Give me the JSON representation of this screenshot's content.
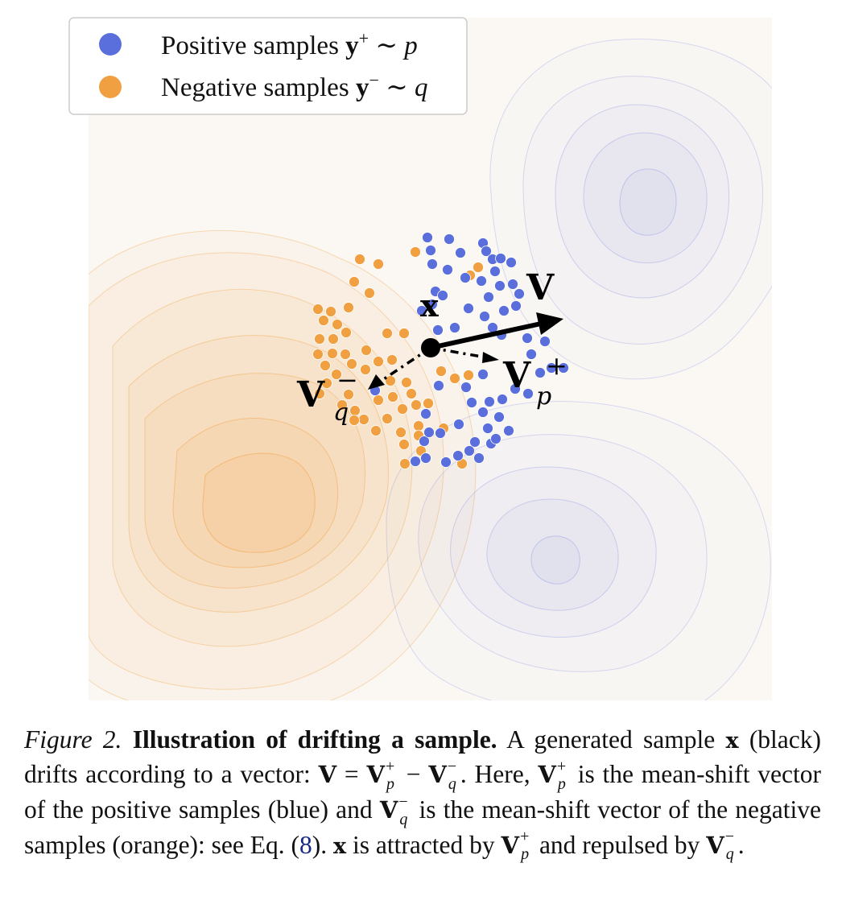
{
  "figure": {
    "legend": [
      {
        "label": "Positive samples ",
        "bold": "y",
        "sup": "+",
        "rest": " ∼ p",
        "color": "#5a6fdc"
      },
      {
        "label": "Negative samples ",
        "bold": "y",
        "sup": "−",
        "rest": " ∼ q",
        "color": "#f0a040"
      }
    ],
    "labels": {
      "x": "x",
      "v": "V",
      "vp": "V",
      "vp_sup": "+",
      "vp_sub": "p",
      "vq": "V",
      "vq_sup": "−",
      "vq_sub": "q"
    },
    "colors": {
      "positive": "#5a6fdc",
      "negative": "#f0a040",
      "background": "#fbf8f4",
      "sample": "#000000"
    }
  },
  "caption": {
    "fig_label": "Figure 2.",
    "title": "Illustration of drifting a sample.",
    "t1": "A generated sample",
    "t2": "(black) drifts according to a vector:",
    "t3": ". Here,",
    "t4": "is the mean-shift vector of the positive samples (blue) and",
    "t5": "is the mean-shift vector of the negative samples (orange): see Eq. (",
    "eq_ref": "8",
    "t6": ").",
    "t7": "is attracted by",
    "t8": "and repulsed by",
    "t9": "."
  }
}
